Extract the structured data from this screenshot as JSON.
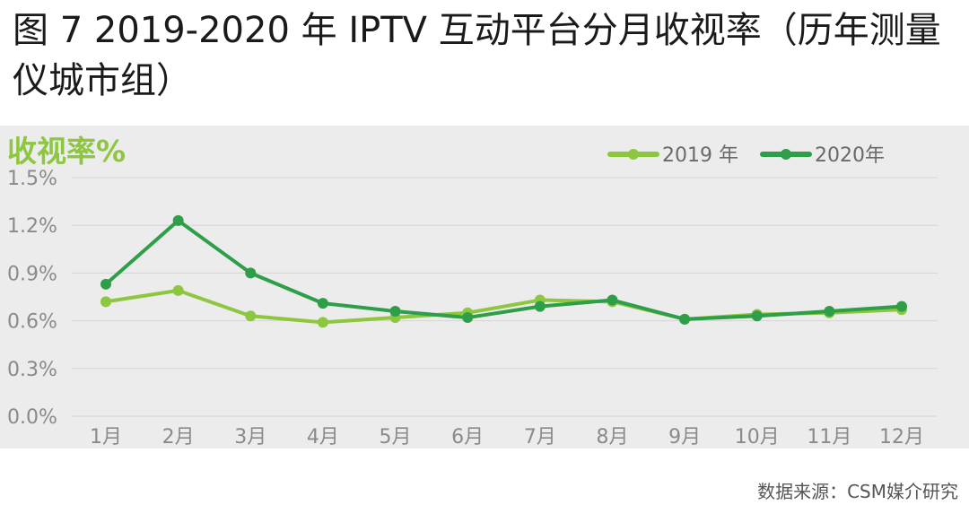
{
  "title": "图 7 2019-2020 年 IPTV 互动平台分月收视率（历年测量仪城市组）",
  "source": "数据来源：CSM媒介研究",
  "colors": {
    "s2019": "#8dc63f",
    "s2020": "#2e9e48",
    "background": "#ececec",
    "grid": "#d4d4d4"
  },
  "chart_data": {
    "type": "line",
    "ylabel": "收视率%",
    "y_ticks": [
      "0.0%",
      "0.3%",
      "0.6%",
      "0.9%",
      "1.2%",
      "1.5%"
    ],
    "ylim": [
      0,
      1.5
    ],
    "categories": [
      "1月",
      "2月",
      "3月",
      "4月",
      "5月",
      "6月",
      "7月",
      "8月",
      "9月",
      "10月",
      "11月",
      "12月"
    ],
    "legend_position": "top-right",
    "grid": true,
    "series": [
      {
        "name": "2019 年",
        "color": "#8dc63f",
        "values": [
          0.72,
          0.79,
          0.63,
          0.59,
          0.62,
          0.65,
          0.73,
          0.72,
          0.61,
          0.64,
          0.65,
          0.67
        ]
      },
      {
        "name": "2020年",
        "color": "#2e9e48",
        "values": [
          0.83,
          1.23,
          0.9,
          0.71,
          0.66,
          0.62,
          0.69,
          0.73,
          0.61,
          0.63,
          0.66,
          0.69
        ]
      }
    ]
  }
}
